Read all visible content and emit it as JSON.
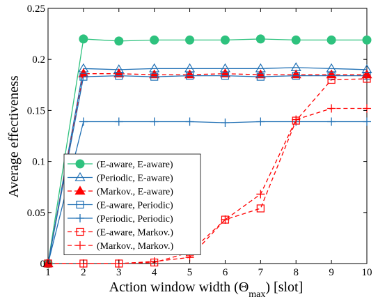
{
  "chart_data": {
    "type": "line",
    "xlabel": "Action window width (Θ",
    "xlabel_sub": "max",
    "xlabel_unit": ") [slot]",
    "ylabel": "Average effectiveness",
    "xlim": [
      1,
      10
    ],
    "ylim": [
      0,
      0.25
    ],
    "x": [
      1,
      2,
      3,
      4,
      5,
      6,
      7,
      8,
      9,
      10
    ],
    "x_tick_labels": [
      "1",
      "2",
      "3",
      "4",
      "5",
      "6",
      "7",
      "8",
      "9",
      "10"
    ],
    "y_ticks": [
      0,
      0.05,
      0.1,
      0.15,
      0.2,
      0.25
    ],
    "y_tick_labels": [
      "0",
      "0.05",
      "0.1",
      "0.15",
      "0.2",
      "0.25"
    ],
    "grid": false,
    "legend_position": "bottom-left",
    "series": [
      {
        "name": "(E-aware, E-aware)",
        "color": "#2ec27e",
        "marker": "filled-circle",
        "dash": "solid",
        "values": [
          0,
          0.22,
          0.218,
          0.219,
          0.219,
          0.219,
          0.22,
          0.219,
          0.219,
          0.219
        ]
      },
      {
        "name": "(Periodic, E-aware)",
        "color": "#1f6fb4",
        "marker": "open-triangle",
        "dash": "solid",
        "values": [
          0,
          0.191,
          0.19,
          0.191,
          0.191,
          0.191,
          0.191,
          0.192,
          0.191,
          0.19
        ]
      },
      {
        "name": "(Markov., E-aware)",
        "color": "#ff0000",
        "marker": "filled-triangle",
        "dash": "dashed",
        "values": [
          0,
          0.186,
          0.186,
          0.185,
          0.185,
          0.186,
          0.185,
          0.185,
          0.185,
          0.185
        ]
      },
      {
        "name": "(E-aware, Periodic)",
        "color": "#1f6fb4",
        "marker": "open-square",
        "dash": "solid",
        "values": [
          0,
          0.183,
          0.184,
          0.183,
          0.184,
          0.184,
          0.183,
          0.184,
          0.184,
          0.184
        ]
      },
      {
        "name": "(Periodic, Periodic)",
        "color": "#1f6fb4",
        "marker": "plus",
        "dash": "solid",
        "values": [
          0,
          0.139,
          0.139,
          0.139,
          0.139,
          0.138,
          0.139,
          0.139,
          0.139,
          0.139
        ]
      },
      {
        "name": "(E-aware, Markov.)",
        "color": "#ff0000",
        "marker": "open-square",
        "dash": "dashed",
        "values": [
          0,
          0.0,
          0.0,
          0.001,
          0.011,
          0.043,
          0.054,
          0.14,
          0.18,
          0.181
        ]
      },
      {
        "name": "(Markov., Markov.)",
        "color": "#ff0000",
        "marker": "plus",
        "dash": "dashed",
        "values": [
          0,
          0.0,
          0.0,
          0.002,
          0.006,
          0.043,
          0.068,
          0.141,
          0.152,
          0.152
        ]
      }
    ]
  }
}
